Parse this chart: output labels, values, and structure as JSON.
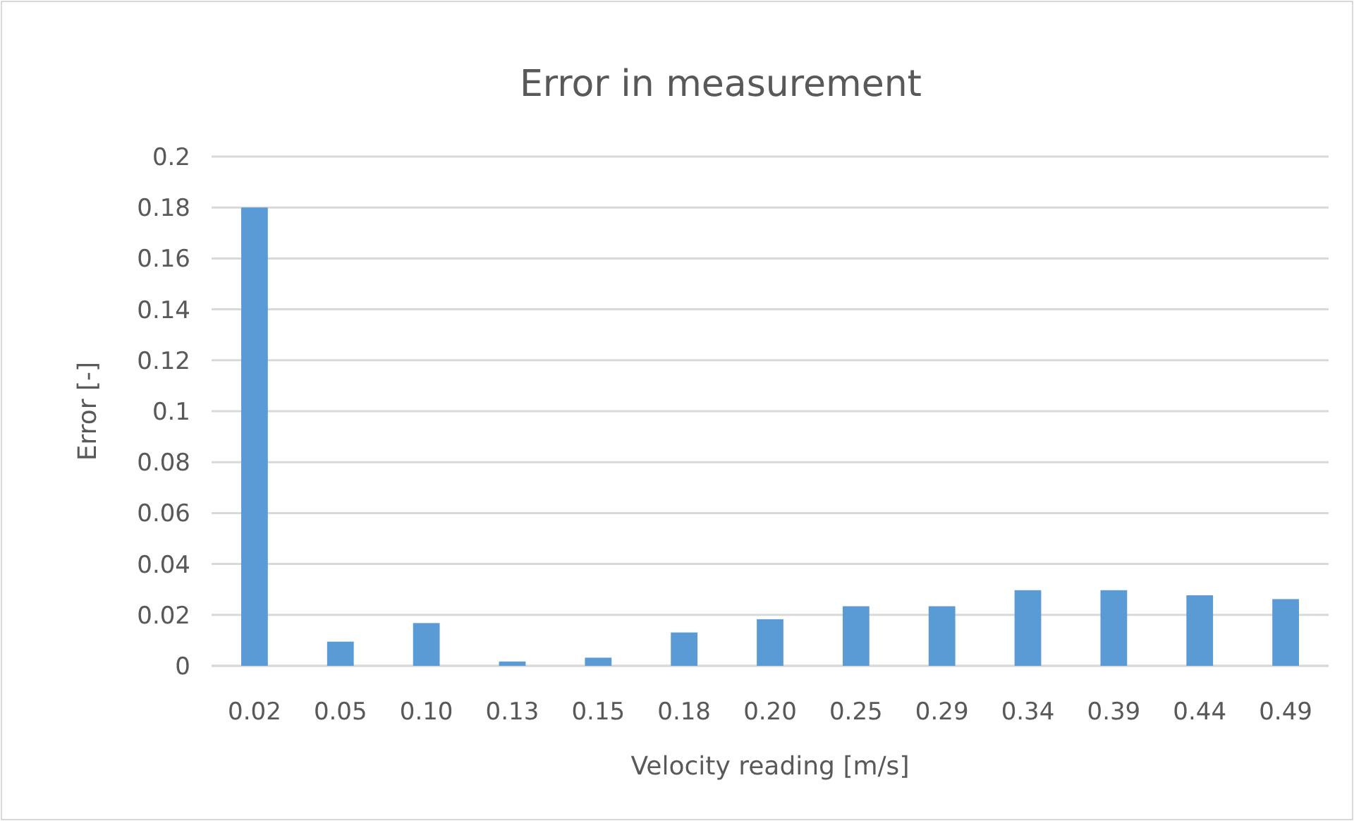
{
  "chart_data": {
    "type": "bar",
    "title": "Error in measurement",
    "xlabel": "Velocity reading [m/s]",
    "ylabel": "Error [-]",
    "categories": [
      "0.02",
      "0.05",
      "0.10",
      "0.13",
      "0.15",
      "0.18",
      "0.20",
      "0.25",
      "0.29",
      "0.34",
      "0.39",
      "0.44",
      "0.49"
    ],
    "values": [
      0.18,
      0.0095,
      0.0168,
      0.0017,
      0.0032,
      0.0131,
      0.0183,
      0.0234,
      0.0234,
      0.0297,
      0.0297,
      0.0277,
      0.0262
    ],
    "color": "#5b9bd5",
    "ylim": [
      0,
      0.2
    ],
    "yticks": [
      0,
      0.02,
      0.04,
      0.06,
      0.08,
      0.1,
      0.12,
      0.14,
      0.16,
      0.18,
      0.2
    ],
    "grid": "y"
  }
}
